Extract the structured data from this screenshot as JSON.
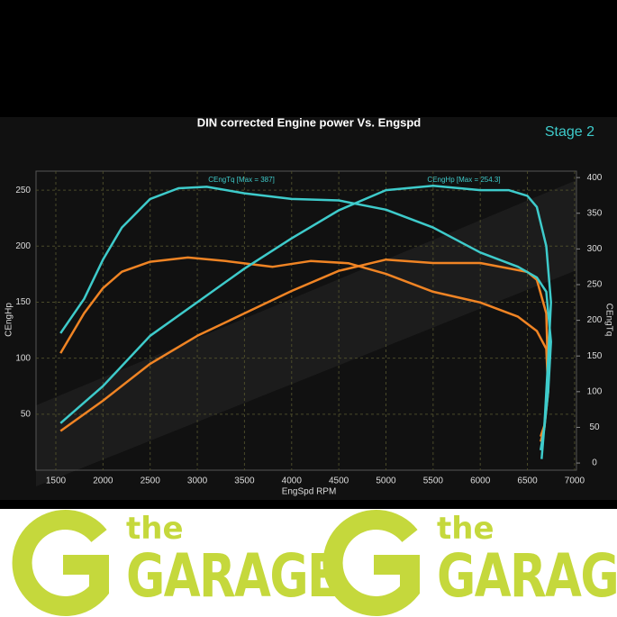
{
  "chart_data": {
    "type": "line",
    "title": "DIN corrected Engine power Vs. Engspd",
    "subtitle": "Stage 2",
    "x_label": "EngSpd RPM",
    "y_label": "CEngHp",
    "y2_label": "CEngTq",
    "annotations": [
      "CEngTq [Max = 387]",
      "CEngHp [Max = 254.3]"
    ],
    "xlim": [
      1290,
      7020
    ],
    "xticks": [
      1500,
      2000,
      2500,
      3000,
      3500,
      4000,
      4500,
      5000,
      5500,
      6000,
      6500,
      7000
    ],
    "ylim": [
      0,
      267
    ],
    "yticks": [
      50,
      100,
      150,
      200,
      250
    ],
    "y2lim": [
      -10,
      409
    ],
    "y2ticks": [
      0,
      50,
      100,
      150,
      200,
      250,
      300,
      350,
      400
    ],
    "grid": true,
    "series": [
      {
        "color": "#f08424",
        "axis": "y2",
        "x": [
          1550,
          1800,
          2000,
          2200,
          2500,
          2900,
          3300,
          3800,
          4200,
          4600,
          5000,
          5500,
          6000,
          6400,
          6600,
          6700,
          6720,
          6680,
          6640
        ],
        "values": [
          154,
          210,
          245,
          268,
          282,
          288,
          283,
          275,
          283,
          280,
          265,
          240,
          225,
          205,
          185,
          160,
          100,
          50,
          30
        ]
      },
      {
        "color": "#f08424",
        "axis": "y",
        "x": [
          1550,
          2000,
          2500,
          3000,
          3500,
          4000,
          4500,
          5000,
          5500,
          6000,
          6500,
          6600,
          6700,
          6720,
          6680,
          6640
        ],
        "values": [
          35,
          62,
          95,
          120,
          140,
          160,
          178,
          188,
          185,
          185,
          177,
          170,
          140,
          80,
          40,
          30
        ]
      },
      {
        "color": "#3ecbcb",
        "axis": "y2",
        "x": [
          1550,
          1800,
          2000,
          2200,
          2500,
          2800,
          3100,
          3500,
          4000,
          4500,
          5000,
          5500,
          6000,
          6400,
          6600,
          6700,
          6750,
          6720,
          6680,
          6640
        ],
        "values": [
          182,
          230,
          285,
          330,
          370,
          385,
          387,
          378,
          370,
          368,
          355,
          330,
          295,
          275,
          260,
          240,
          170,
          100,
          50,
          18
        ]
      },
      {
        "color": "#3ecbcb",
        "axis": "y",
        "x": [
          1550,
          2000,
          2500,
          3000,
          3500,
          4000,
          4500,
          5000,
          5500,
          6000,
          6300,
          6500,
          6600,
          6700,
          6750,
          6720,
          6680,
          6650
        ],
        "values": [
          42,
          75,
          120,
          150,
          180,
          207,
          232,
          250,
          254,
          250,
          250,
          245,
          235,
          200,
          150,
          100,
          40,
          10
        ]
      }
    ]
  },
  "logos": [
    {
      "small": "the",
      "big": "GARAGE"
    },
    {
      "small": "the",
      "big": "GARAGE"
    }
  ]
}
